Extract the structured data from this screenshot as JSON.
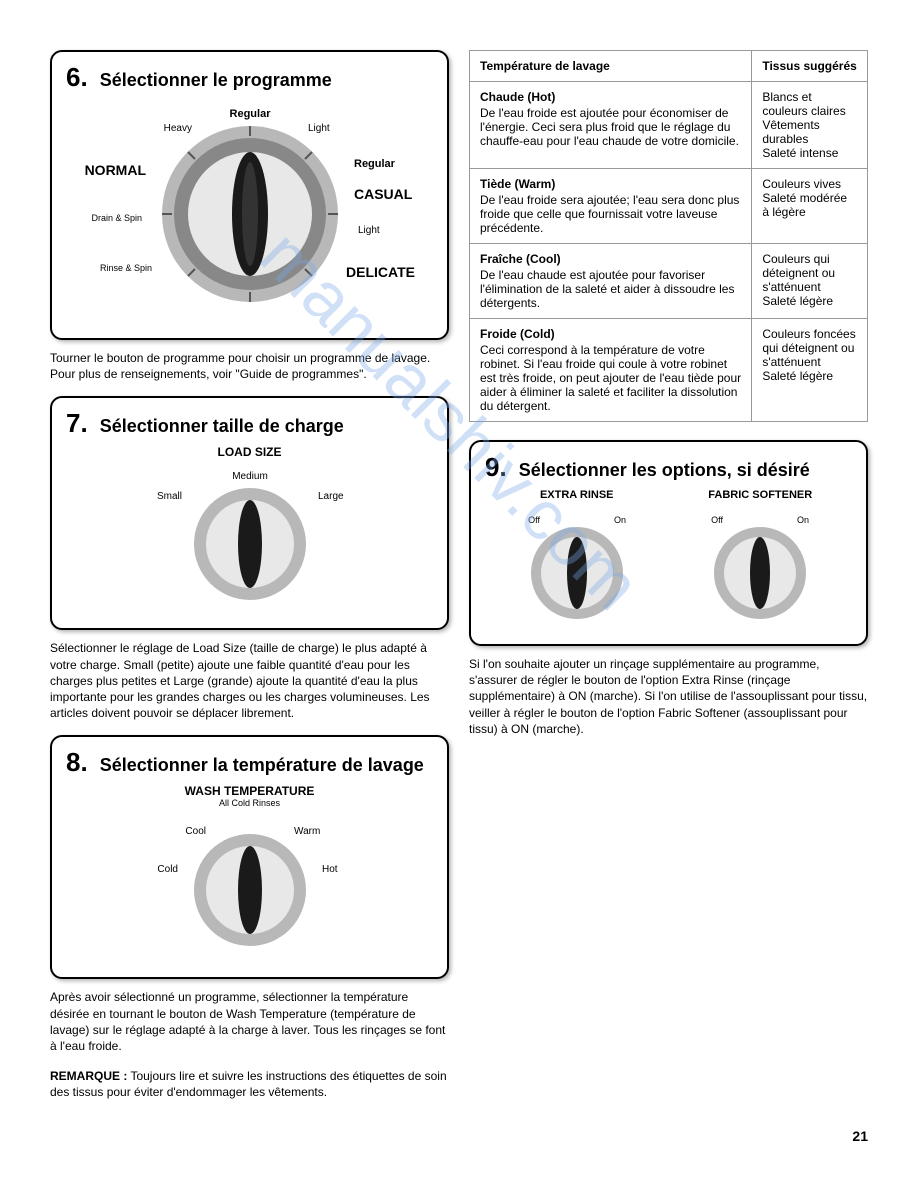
{
  "watermark": "manualshiv.com",
  "page_number": "21",
  "panel6": {
    "num": "6.",
    "title": "Sélectionner le programme",
    "dial": {
      "center_label_top": "Regular",
      "labels": {
        "heavy": "Heavy",
        "light_top": "Light",
        "normal": "NORMAL",
        "regular_r": "Regular",
        "casual": "CASUAL",
        "drain": "Drain & Spin",
        "light_r": "Light",
        "rinse": "Rinse & Spin",
        "delicate": "DELICATE"
      }
    },
    "text": "Tourner le bouton de programme pour choisir un programme de lavage. Pour plus de renseignements, voir \"Guide de programmes\"."
  },
  "panel7": {
    "num": "7.",
    "title": "Sélectionner taille de charge",
    "dial_title": "LOAD SIZE",
    "labels": {
      "small": "Small",
      "medium": "Medium",
      "large": "Large"
    },
    "text": "Sélectionner le réglage de Load Size (taille de charge) le plus adapté à votre charge. Small (petite) ajoute une faible quantité d'eau pour les charges plus petites et Large (grande) ajoute la quantité d'eau la plus importante pour les grandes charges ou les charges volumineuses. Les articles doivent pouvoir se déplacer librement."
  },
  "panel8": {
    "num": "8.",
    "title": "Sélectionner la température de lavage",
    "dial_title": "WASH TEMPERATURE",
    "dial_sub": "All Cold Rinses",
    "labels": {
      "cold": "Cold",
      "cool": "Cool",
      "warm": "Warm",
      "hot": "Hot"
    },
    "text": "Après avoir sélectionné un programme, sélectionner la température désirée en tournant le bouton de Wash Temperature (température de lavage) sur le réglage adapté à la charge à laver. Tous les rinçages se font à l'eau froide.",
    "remarque_label": "REMARQUE :",
    "remarque": " Toujours lire et suivre les instructions des étiquettes de soin des tissus pour éviter d'endommager les vêtements."
  },
  "table": {
    "h1": "Température de lavage",
    "h2": "Tissus suggérés",
    "rows": [
      {
        "title": "Chaude (Hot)",
        "desc": "De l'eau froide est ajoutée pour économiser de l'énergie. Ceci sera plus froid que le réglage du chauffe-eau pour l'eau chaude de votre domicile.",
        "fabric": "Blancs et couleurs claires\nVêtements durables\nSaleté intense"
      },
      {
        "title": "Tiède (Warm)",
        "desc": "De l'eau froide sera ajoutée; l'eau sera donc plus froide que celle que fournissait votre laveuse précédente.",
        "fabric": "Couleurs vives\nSaleté modérée à légère"
      },
      {
        "title": "Fraîche (Cool)",
        "desc": "De l'eau chaude est ajoutée pour favoriser l'élimination de la saleté et aider à dissoudre les détergents.",
        "fabric": "Couleurs qui déteignent ou s'atténuent\nSaleté légère"
      },
      {
        "title": "Froide (Cold)",
        "desc": "Ceci correspond à la température de votre robinet. Si l'eau froide qui coule à votre robinet est très froide, on peut ajouter de l'eau tiède pour aider à éliminer la saleté et faciliter la dissolution du détergent.",
        "fabric": "Couleurs foncées qui déteignent ou s'atténuent\nSaleté légère"
      }
    ]
  },
  "panel9": {
    "num": "9.",
    "title": "Sélectionner les options, si désiré",
    "opt1_title": "EXTRA RINSE",
    "opt2_title": "FABRIC SOFTENER",
    "off": "Off",
    "on": "On",
    "text": "Si l'on souhaite ajouter un rinçage supplémentaire au programme, s'assurer de régler le  bouton de l'option Extra Rinse (rinçage supplémentaire) à ON (marche). Si l'on utilise de l'assouplissant pour tissu, veiller à régler le bouton de l'option Fabric Softener (assouplissant pour tissu) à ON (marche)."
  },
  "colors": {
    "dial_outer": "#b8b8b8",
    "dial_mid": "#888",
    "dial_inner": "#e8e8e8",
    "knob": "#1a1a1a",
    "tick": "#555"
  }
}
